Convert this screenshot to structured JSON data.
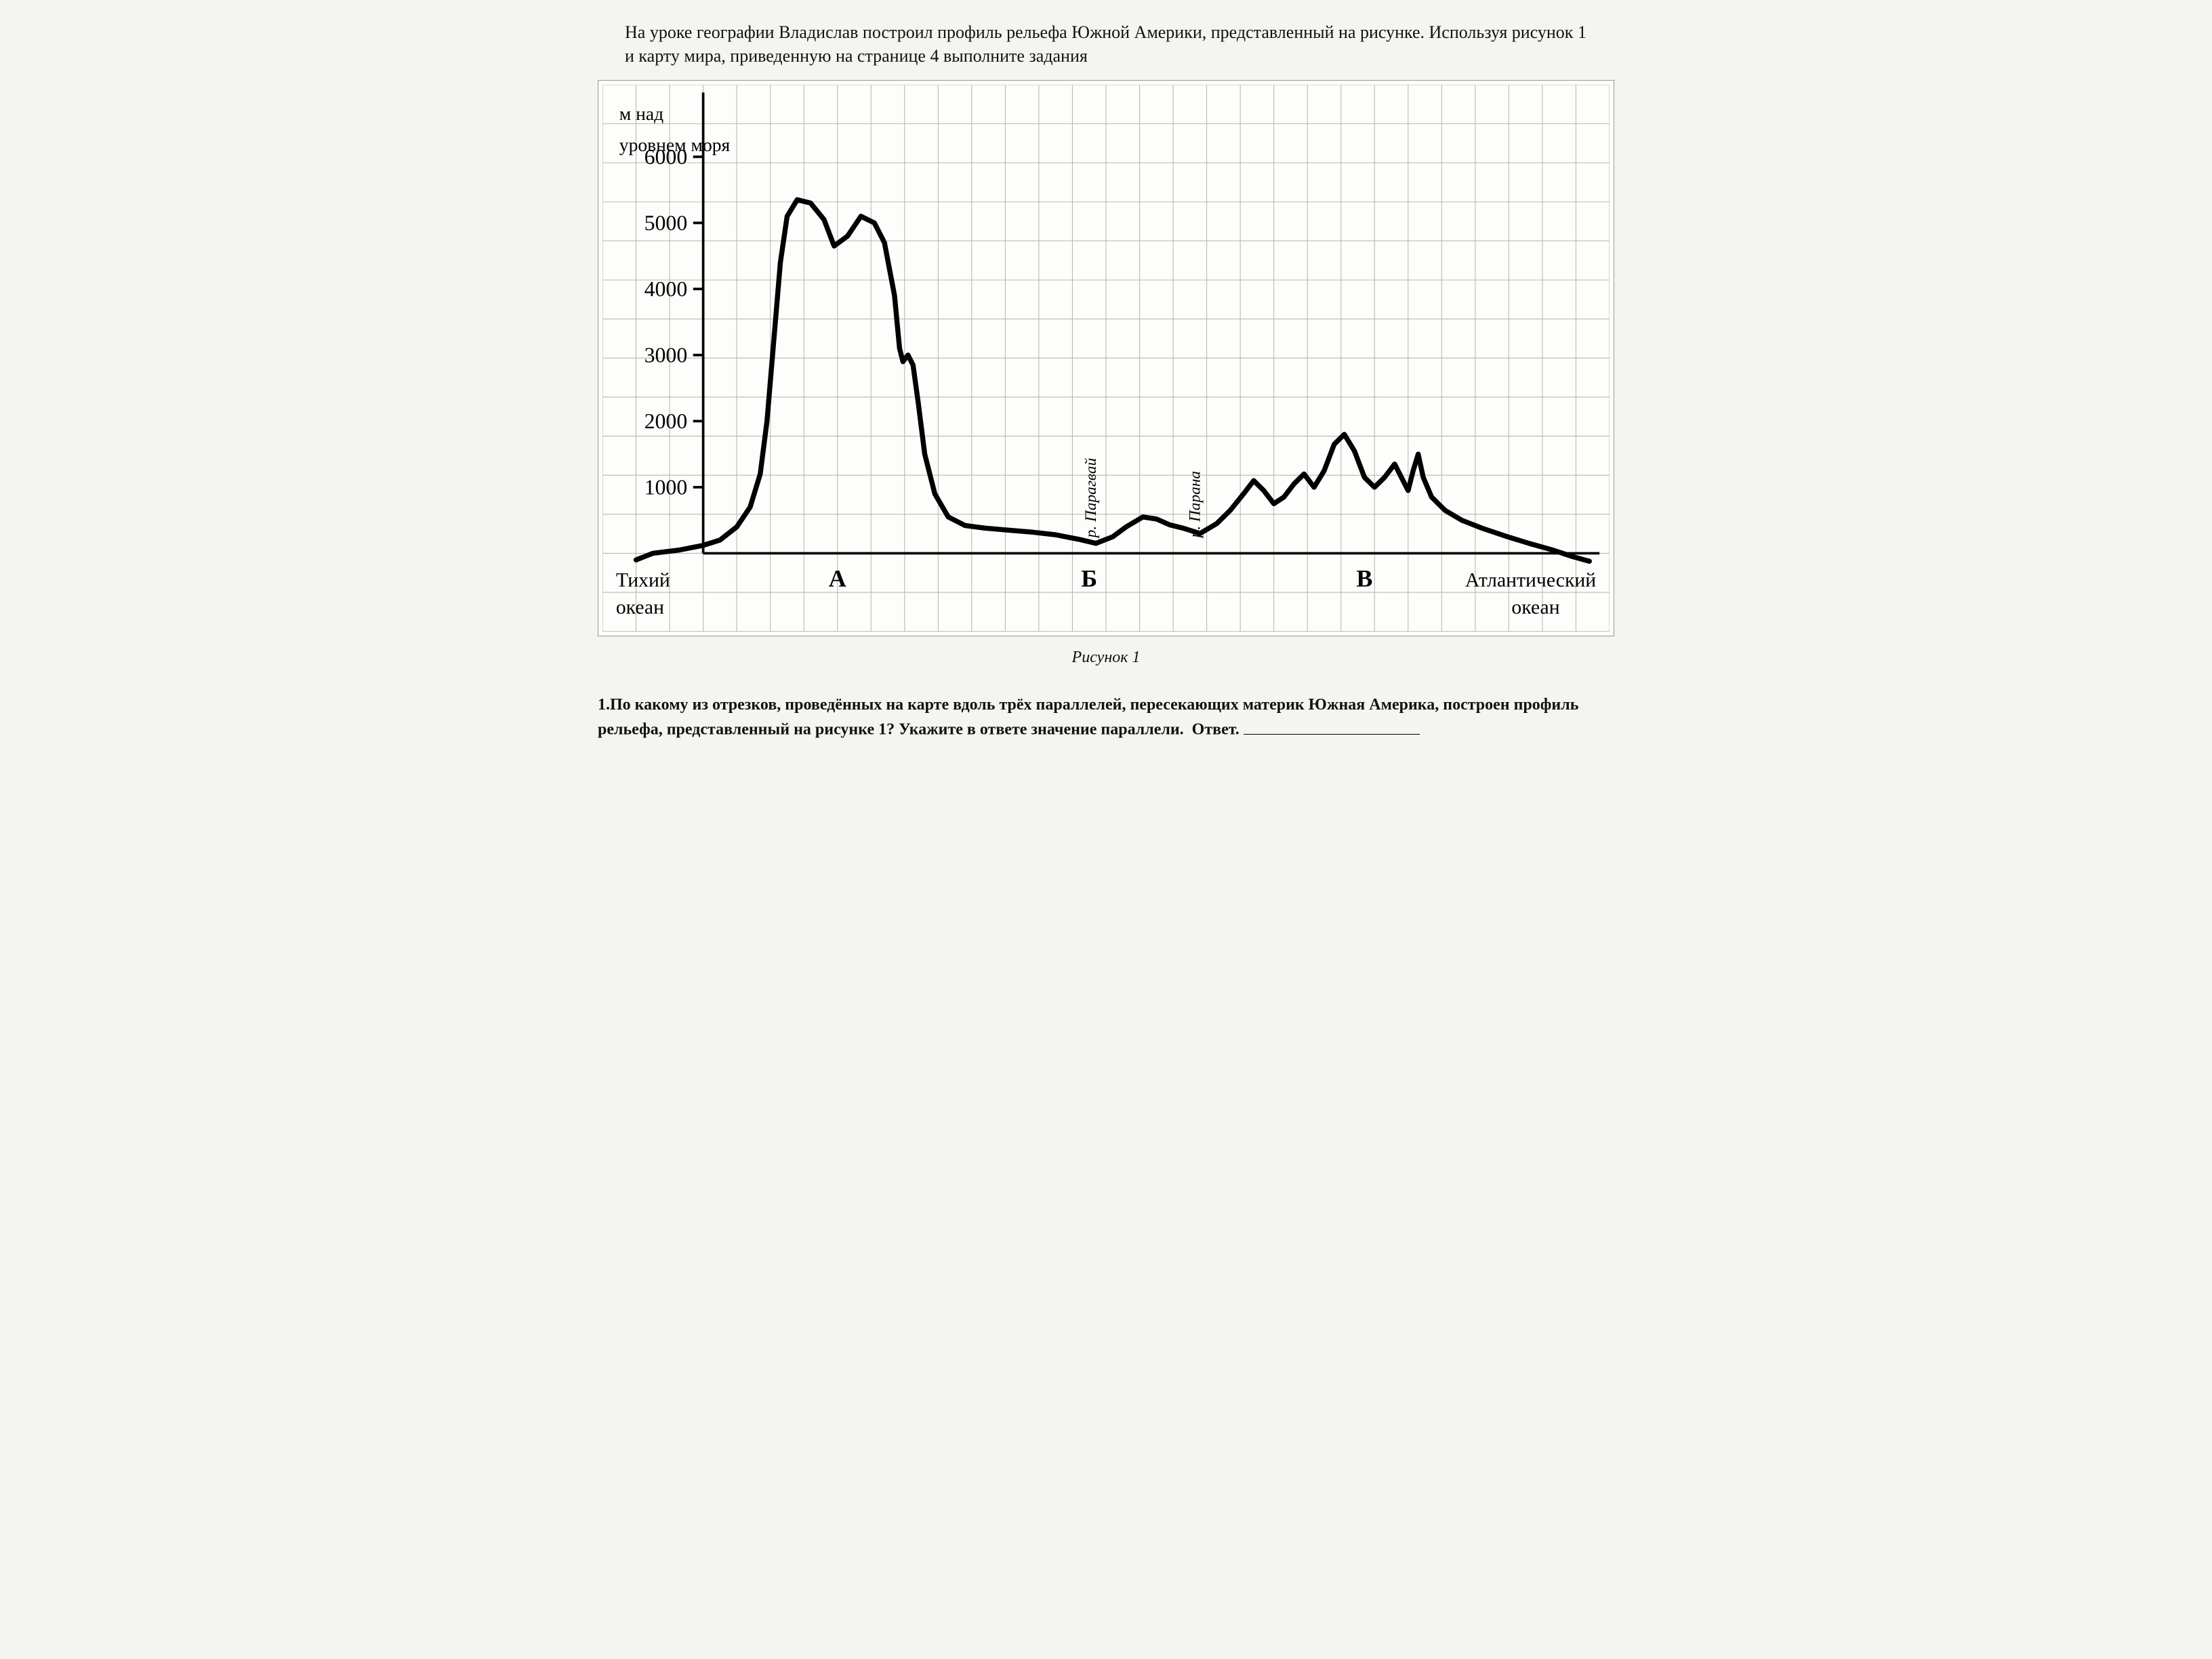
{
  "intro_text": "На уроке географии Владислав построил профиль рельефа Южной Америки, представленный на рисунке. Используя рисунок 1 и карту мира, приведенную на странице 4 выполните задания",
  "caption": "Рисунок 1",
  "question1_number": "1.",
  "question1_text": "По какому из отрезков, проведённых на карте вдоль трёх параллелей, пересекающих материк Южная Америка, построен профиль рельефа, представленный на рисунке 1? Укажите в ответе значение параллели.",
  "answer_label": "Ответ.",
  "chart": {
    "type": "line",
    "y_axis_title_line1": "м над",
    "y_axis_title_line2": "уровнем моря",
    "y_ticks": [
      1000,
      2000,
      3000,
      4000,
      5000,
      6000
    ],
    "y_min": 0,
    "y_max": 6500,
    "x_min": 0,
    "x_max": 30,
    "x_cells": 30,
    "y_cells": 14,
    "left_ocean": "Тихий океан",
    "right_ocean": "Атлантический океан",
    "section_labels": [
      {
        "text": "А",
        "x": 7.0
      },
      {
        "text": "Б",
        "x": 14.5
      },
      {
        "text": "В",
        "x": 22.7
      }
    ],
    "river_labels": [
      {
        "text": "р. Парагвай",
        "x": 14.7
      },
      {
        "text": "р. Парана",
        "x": 17.8
      }
    ],
    "profile_points": [
      [
        1.0,
        -100
      ],
      [
        1.5,
        0
      ],
      [
        2.3,
        50
      ],
      [
        3.0,
        120
      ],
      [
        3.5,
        200
      ],
      [
        4.0,
        400
      ],
      [
        4.4,
        700
      ],
      [
        4.7,
        1200
      ],
      [
        4.9,
        2000
      ],
      [
        5.1,
        3200
      ],
      [
        5.3,
        4400
      ],
      [
        5.5,
        5100
      ],
      [
        5.8,
        5350
      ],
      [
        6.2,
        5300
      ],
      [
        6.6,
        5050
      ],
      [
        6.9,
        4650
      ],
      [
        7.3,
        4800
      ],
      [
        7.7,
        5100
      ],
      [
        8.1,
        5000
      ],
      [
        8.4,
        4700
      ],
      [
        8.7,
        3900
      ],
      [
        8.85,
        3100
      ],
      [
        8.95,
        2900
      ],
      [
        9.1,
        3000
      ],
      [
        9.25,
        2850
      ],
      [
        9.4,
        2300
      ],
      [
        9.6,
        1500
      ],
      [
        9.9,
        900
      ],
      [
        10.3,
        550
      ],
      [
        10.8,
        420
      ],
      [
        11.4,
        380
      ],
      [
        12.1,
        350
      ],
      [
        12.8,
        320
      ],
      [
        13.5,
        280
      ],
      [
        14.2,
        210
      ],
      [
        14.7,
        150
      ],
      [
        15.2,
        250
      ],
      [
        15.6,
        400
      ],
      [
        16.1,
        550
      ],
      [
        16.5,
        520
      ],
      [
        16.9,
        430
      ],
      [
        17.3,
        380
      ],
      [
        17.8,
        300
      ],
      [
        18.3,
        450
      ],
      [
        18.7,
        650
      ],
      [
        19.1,
        900
      ],
      [
        19.4,
        1100
      ],
      [
        19.7,
        950
      ],
      [
        20.0,
        750
      ],
      [
        20.3,
        850
      ],
      [
        20.6,
        1050
      ],
      [
        20.9,
        1200
      ],
      [
        21.2,
        1000
      ],
      [
        21.5,
        1250
      ],
      [
        21.8,
        1650
      ],
      [
        22.1,
        1800
      ],
      [
        22.4,
        1550
      ],
      [
        22.7,
        1150
      ],
      [
        23.0,
        1000
      ],
      [
        23.3,
        1150
      ],
      [
        23.6,
        1350
      ],
      [
        23.85,
        1100
      ],
      [
        24.0,
        950
      ],
      [
        24.15,
        1250
      ],
      [
        24.3,
        1500
      ],
      [
        24.45,
        1150
      ],
      [
        24.7,
        850
      ],
      [
        25.1,
        650
      ],
      [
        25.6,
        500
      ],
      [
        26.2,
        380
      ],
      [
        26.9,
        260
      ],
      [
        27.6,
        150
      ],
      [
        28.3,
        50
      ],
      [
        28.9,
        -50
      ],
      [
        29.4,
        -120
      ]
    ],
    "colors": {
      "background": "#fdfdfb",
      "grid": "#b8b8b0",
      "grid_minor": "#d0d0c8",
      "axis": "#000000",
      "profile": "#000000",
      "text": "#000000"
    },
    "style": {
      "axis_width": 3.5,
      "profile_width": 7,
      "grid_width": 1,
      "tick_len": 14,
      "tick_font": 30,
      "section_font": 34,
      "ocean_font": 28,
      "ytitle_font": 26,
      "river_font": 22
    }
  }
}
